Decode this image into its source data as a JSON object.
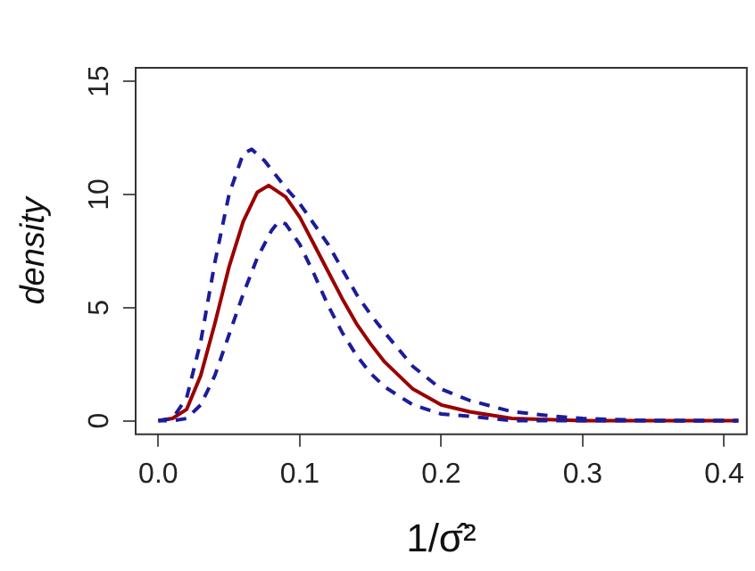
{
  "chart_data": {
    "type": "line",
    "xlabel": "1/σ̂²",
    "ylabel": "density",
    "xlim": [
      -0.016,
      0.416
    ],
    "xticks": [
      {
        "value": 0,
        "label": "0.0"
      },
      0.1,
      0.2,
      0.3,
      0.4
    ],
    "ylim": [
      -0.6,
      15.6
    ],
    "yticks": [
      0,
      5,
      10,
      15
    ],
    "grid": false,
    "legend": false,
    "marker": "none",
    "series": [
      {
        "color": "#9b0000",
        "line_style": "solid",
        "x": [
          0,
          0.01,
          0.02,
          0.03,
          0.04,
          0.05,
          0.06,
          0.07,
          0.078,
          0.09,
          0.1,
          0.11,
          0.12,
          0.13,
          0.14,
          0.15,
          0.16,
          0.17,
          0.18,
          0.2,
          0.22,
          0.25,
          0.3,
          0.35,
          0.41
        ],
        "values": [
          0,
          0.1,
          0.5,
          2,
          4.3,
          6.8,
          8.8,
          10.1,
          10.4,
          9.9,
          9,
          7.8,
          6.6,
          5.4,
          4.3,
          3.4,
          2.6,
          2,
          1.4,
          0.7,
          0.4,
          0.1,
          0,
          0,
          0
        ]
      },
      {
        "color": "#1c1c9a",
        "line_style": "dashed",
        "x": [
          0,
          0.01,
          0.02,
          0.03,
          0.04,
          0.05,
          0.06,
          0.066,
          0.075,
          0.09,
          0.1,
          0.12,
          0.14,
          0.15,
          0.16,
          0.18,
          0.2,
          0.22,
          0.25,
          0.28,
          0.3,
          0.35,
          0.41
        ],
        "values": [
          0,
          0.1,
          1,
          3.5,
          7,
          10,
          11.8,
          12,
          11.5,
          10.3,
          9.6,
          7.8,
          5.6,
          4.7,
          3.9,
          2.4,
          1.4,
          0.9,
          0.4,
          0.2,
          0.1,
          0,
          0
        ]
      },
      {
        "color": "#1c1c9a",
        "line_style": "dashed",
        "x": [
          0,
          0.01,
          0.02,
          0.03,
          0.04,
          0.05,
          0.06,
          0.07,
          0.08,
          0.085,
          0.09,
          0.1,
          0.11,
          0.12,
          0.13,
          0.14,
          0.15,
          0.16,
          0.18,
          0.2,
          0.22,
          0.25,
          0.3,
          0.41
        ],
        "values": [
          0,
          0,
          0.1,
          0.7,
          2,
          3.8,
          5.6,
          7.2,
          8.4,
          8.8,
          8.7,
          7.8,
          6.5,
          5.1,
          3.9,
          2.9,
          2.1,
          1.5,
          0.7,
          0.3,
          0.2,
          0,
          0,
          0
        ]
      }
    ]
  }
}
